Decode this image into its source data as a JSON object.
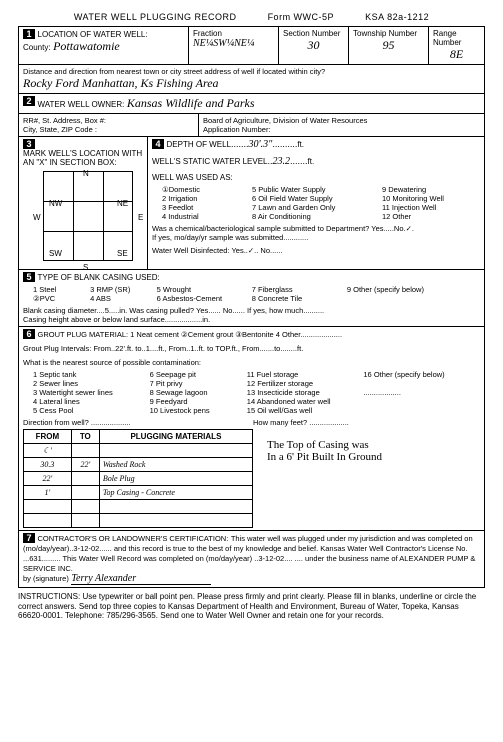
{
  "header": {
    "title": "WATER WELL PLUGGING RECORD",
    "form": "Form WWC-5P",
    "ksa": "KSA 82a-1212"
  },
  "sec1": {
    "label": "LOCATION OF WATER WELL:",
    "county_label": "County:",
    "county": "Pottawatomie",
    "fraction_label": "Fraction",
    "fraction": "NE¼SW¼NE¼",
    "section_label": "Section Number",
    "section": "30",
    "township_label": "Township Number",
    "township": "95",
    "range_label": "Range Number",
    "range": "8E",
    "dist_label": "Distance and direction from nearest town or city street address of well if located within city?",
    "dist": "Rocky Ford   Manhattan, Ks   Fishing Area"
  },
  "sec2": {
    "label": "WATER WELL OWNER:",
    "owner": "Kansas Wildlife and Parks",
    "addr_label": "RR#, St. Address, Box #:\nCity, State, ZIP Code :",
    "board_label": "Board of Agriculture, Division of Water Resources\nApplication Number:"
  },
  "sec3": {
    "label": "MARK WELL'S LOCATION WITH\nAN \"X\" IN SECTION BOX:"
  },
  "sec4": {
    "depth_label": "DEPTH OF WELL",
    "depth": "30'.3\"",
    "ft": "ft.",
    "static_label": "WELL'S STATIC WATER LEVEL",
    "static": "23.2",
    "used_label": "WELL WAS USED AS:",
    "uses": [
      [
        "①Domestic",
        "5 Public Water Supply",
        "9 Dewatering"
      ],
      [
        "2 Irrigation",
        "6 Oil Field Water Supply",
        "10 Monitoring Well"
      ],
      [
        "3 Feedlot",
        "7 Lawn and Garden Only",
        "11 Injection Well"
      ],
      [
        "4 Industrial",
        "8 Air Conditioning",
        "12 Other"
      ]
    ],
    "chem_label": "Was a chemical/bacteriological sample submitted to Department? Yes.....No.✓.",
    "if_yes": "If yes, mo/day/yr sample was submitted............",
    "disinfect": "Water Well Disinfected:   Yes..✓..  No......"
  },
  "sec5": {
    "label": "TYPE OF BLANK CASING USED:",
    "opts": [
      [
        "1 Steel",
        "3 RMP (SR)",
        "5 Wrought",
        "7 Fiberglass",
        "9 Other (specify below)"
      ],
      [
        "②PVC",
        "4 ABS",
        "6 Asbestos-Cement",
        "8 Concrete Tile",
        ""
      ]
    ],
    "diam": "Blank casing diameter....5.....in.    Was casing pulled?  Yes......  No......  If yes, how much..........",
    "height": "Casing height above or below land surface..................in."
  },
  "sec6": {
    "label": "GROUT PLUG MATERIAL:  1 Neat cement   ②Cement grout   ③Bentonite   4 Other....................",
    "intervals": "Grout Plug Intervals:    From..22'.ft. to..1....ft.,  From..1..ft. to TOP.ft.,  From.......to........ft.",
    "contam_label": "What is the nearest source of possible contamination:",
    "contam": [
      [
        "1 Septic tank",
        "6 Seepage pit",
        "11 Fuel storage",
        "16 Other (specify below)"
      ],
      [
        "2 Sewer lines",
        "7 Pit privy",
        "12 Fertilizer storage",
        ""
      ],
      [
        "3 Watertight sewer lines",
        "8 Sewage lagoon",
        "13 Insecticide storage",
        ".................."
      ],
      [
        "4 Lateral lines",
        "9 Feedyard",
        "14 Abandoned water well",
        ""
      ],
      [
        "5 Cess Pool",
        "10 Livestock pens",
        "15 Oil well/Gas well",
        ""
      ]
    ],
    "dir": "Direction from well? ...................",
    "feet": "How many feet? ...................",
    "table": {
      "headers": [
        "FROM",
        "TO",
        "PLUGGING MATERIALS"
      ],
      "rows": [
        [
          "☾'",
          "",
          ""
        ],
        [
          "30.3",
          "22'",
          "Washed Rock"
        ],
        [
          "22'",
          "",
          "Bole Plug"
        ],
        [
          "1'",
          "",
          "Top Casing - Concrete"
        ],
        [
          "",
          "",
          ""
        ],
        [
          "",
          "",
          ""
        ]
      ]
    },
    "note1": "The Top of Casing was",
    "note2": "In a 6' Pit Built In Ground"
  },
  "sec7": {
    "label": "CONTRACTOR'S OR LANDOWNER'S CERTIFICATION:",
    "text": "This water well was plugged under my jurisdiction and was completed on (mo/day/year)..3-12-02...... and this record is true to the best of my knowledge and belief.  Kansas Water Well Contractor's License No. ...631.........  This Water Well Record was completed on (mo/day/year) ..3-12-02.... .... under the business name of   ALEXANDER PUMP & SERVICE INC.",
    "sig_label": "by (signature)",
    "sig": "Terry Alexander"
  },
  "instructions": "INSTRUCTIONS: Use typewriter or ball point pen. Please press firmly and print clearly. Please fill in blanks, underline or circle the correct answers. Send top three copies to Kansas Department of Health and Environment, Bureau of Water, Topeka, Kansas 66620-0001. Telephone: 785/296-3565. Send one to Water Well Owner and retain one for your records."
}
